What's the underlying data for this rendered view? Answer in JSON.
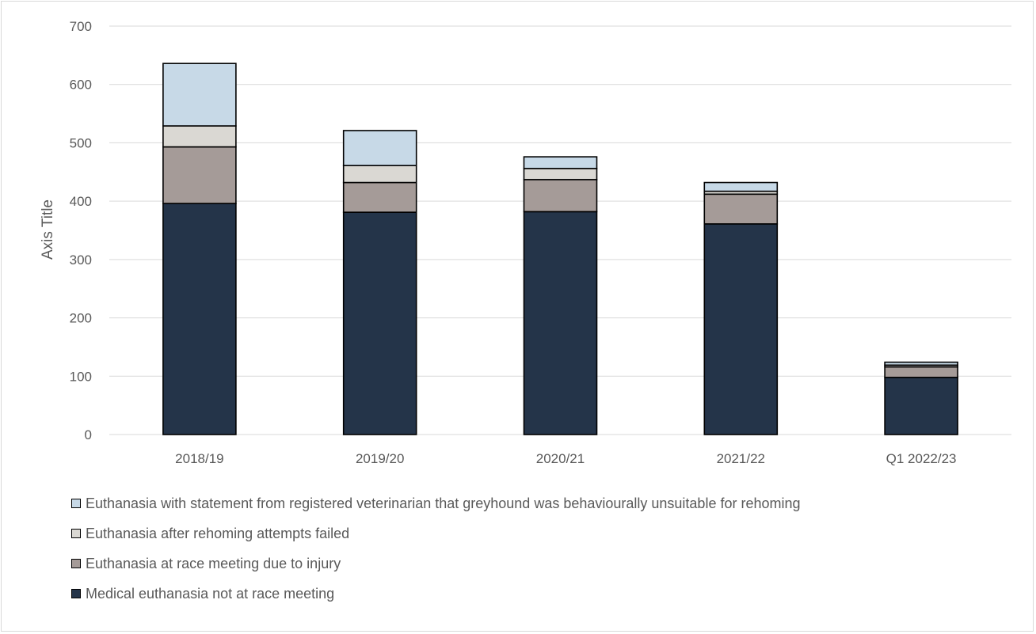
{
  "chart_data": {
    "type": "bar",
    "stacked": true,
    "categories": [
      "2018/19",
      "2019/20",
      "2020/21",
      "2021/22",
      "Q1 2022/23"
    ],
    "series": [
      {
        "name": "Medical euthanasia not at race meeting",
        "color": "#243449",
        "values": [
          396,
          381,
          382,
          361,
          98
        ]
      },
      {
        "name": "Euthanasia at race meeting due to injury",
        "color": "#a59b98",
        "values": [
          97,
          51,
          55,
          51,
          18
        ]
      },
      {
        "name": "Euthanasia after rehoming attempts failed",
        "color": "#dad8d3",
        "values": [
          36,
          29,
          19,
          5,
          3
        ]
      },
      {
        "name": "Euthanasia with statement from registered veterinarian that greyhound was behaviourally unsuitable for rehoming",
        "color": "#c7d9e7",
        "values": [
          107,
          60,
          20,
          15,
          5
        ]
      }
    ],
    "ylabel": "Axis Title",
    "ylim": [
      0,
      700
    ],
    "yticks": [
      0,
      100,
      200,
      300,
      400,
      500,
      600,
      700
    ],
    "grid": true,
    "legend": "bottom"
  }
}
